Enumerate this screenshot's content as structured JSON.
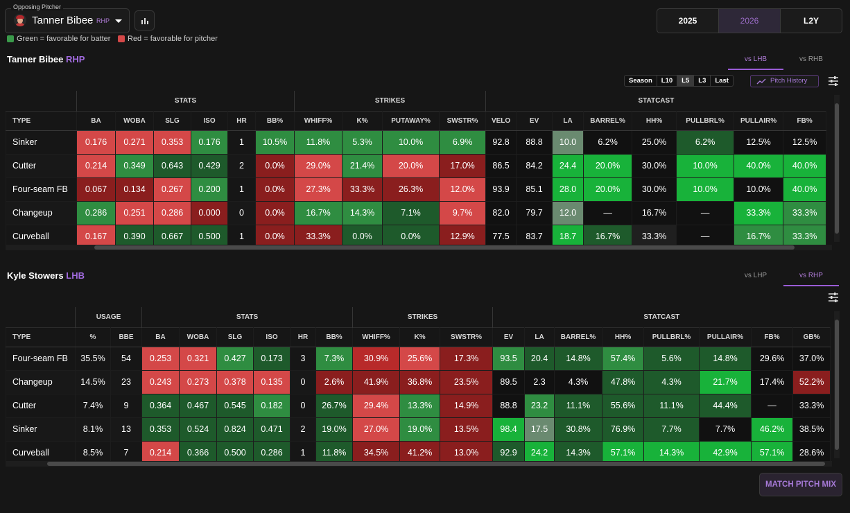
{
  "header": {
    "opposing_label": "Opposing Pitcher",
    "pitcher_name": "Tanner Bibee",
    "pitcher_hand": "RHP",
    "legend_green": "Green = favorable for batter",
    "legend_red": "Red = favorable for pitcher",
    "years": [
      "2025",
      "2026",
      "L2Y"
    ],
    "active_year": "2026"
  },
  "pitcher_section": {
    "name": "Tanner Bibee",
    "hand": "RHP",
    "tabs": [
      "vs LHB",
      "vs RHB"
    ],
    "active_tab": "vs LHB",
    "windows": [
      "Season",
      "L10",
      "L5",
      "L3",
      "Last"
    ],
    "active_window": "L5",
    "pitch_history_label": "Pitch History",
    "groups": [
      "STATS",
      "STRIKES",
      "STATCAST"
    ],
    "headers": [
      "TYPE",
      "BA",
      "WOBA",
      "SLG",
      "ISO",
      "HR",
      "BB%",
      "WHIFF%",
      "K%",
      "PUTAWAY%",
      "SWSTR%",
      "VELO",
      "EV",
      "LA",
      "BARREL%",
      "HH%",
      "PULLBRL%",
      "PULLAIR%",
      "FB%"
    ],
    "rows": [
      [
        "Sinker",
        "0.176",
        "0.271",
        "0.353",
        "0.176",
        "1",
        "10.5%",
        "11.8%",
        "5.3%",
        "10.0%",
        "6.9%",
        "92.8",
        "88.8",
        "10.0",
        "6.2%",
        "25.0%",
        "6.2%",
        "12.5%",
        "12.5%"
      ],
      [
        "Cutter",
        "0.214",
        "0.349",
        "0.643",
        "0.429",
        "2",
        "0.0%",
        "29.0%",
        "21.4%",
        "20.0%",
        "17.0%",
        "86.5",
        "84.2",
        "24.4",
        "20.0%",
        "30.0%",
        "10.0%",
        "40.0%",
        "40.0%"
      ],
      [
        "Four-seam FB",
        "0.067",
        "0.134",
        "0.267",
        "0.200",
        "1",
        "0.0%",
        "27.3%",
        "33.3%",
        "26.3%",
        "12.0%",
        "93.9",
        "85.1",
        "28.0",
        "20.0%",
        "30.0%",
        "10.0%",
        "10.0%",
        "40.0%"
      ],
      [
        "Changeup",
        "0.286",
        "0.251",
        "0.286",
        "0.000",
        "0",
        "0.0%",
        "16.7%",
        "14.3%",
        "7.1%",
        "9.7%",
        "82.0",
        "79.7",
        "12.0",
        "—",
        "16.7%",
        "—",
        "33.3%",
        "33.3%"
      ],
      [
        "Curveball",
        "0.167",
        "0.390",
        "0.667",
        "0.500",
        "1",
        "0.0%",
        "33.3%",
        "0.0%",
        "0.0%",
        "12.9%",
        "77.5",
        "83.7",
        "18.7",
        "16.7%",
        "33.3%",
        "—",
        "16.7%",
        "33.3%"
      ]
    ],
    "colors": [
      [
        "",
        "rs",
        "rs",
        "rs",
        "gm",
        "",
        "gm",
        "gm",
        "gm",
        "gm",
        "gm",
        "n",
        "n",
        "gg",
        "n",
        "n",
        "gd",
        "n",
        "n"
      ],
      [
        "",
        "rs",
        "gm",
        "gd",
        "gd",
        "",
        "rd",
        "rs",
        "gm",
        "rs",
        "rd",
        "n",
        "n",
        "gs",
        "gs",
        "n",
        "gs",
        "gs",
        "gs"
      ],
      [
        "",
        "rd",
        "rd",
        "rs",
        "gm",
        "",
        "rd",
        "rs",
        "rd",
        "rd",
        "rs",
        "n",
        "n",
        "gs",
        "gs",
        "n",
        "gs",
        "n",
        "gs"
      ],
      [
        "",
        "gm",
        "rs",
        "rs",
        "rd",
        "",
        "rd",
        "gm",
        "gm",
        "gd",
        "rs",
        "n",
        "n",
        "gg",
        "n",
        "n",
        "n",
        "gs",
        "gm"
      ],
      [
        "",
        "rs",
        "gd",
        "gd",
        "gd",
        "",
        "rd",
        "rd",
        "gd",
        "gd",
        "rd",
        "n",
        "n",
        "gs",
        "gd",
        "n2",
        "n",
        "gm",
        "gm"
      ]
    ]
  },
  "batter_section": {
    "name": "Kyle Stowers",
    "hand": "LHB",
    "tabs": [
      "vs LHP",
      "vs RHP"
    ],
    "active_tab": "vs RHP",
    "groups": [
      "USAGE",
      "STATS",
      "STRIKES",
      "STATCAST"
    ],
    "headers": [
      "TYPE",
      "%",
      "BBE",
      "BA",
      "WOBA",
      "SLG",
      "ISO",
      "HR",
      "BB%",
      "WHIFF%",
      "K%",
      "SWSTR%",
      "EV",
      "LA",
      "BARREL%",
      "HH%",
      "PULLBRL%",
      "PULLAIR%",
      "FB%",
      "GB%"
    ],
    "rows": [
      [
        "Four-seam FB",
        "35.5%",
        "54",
        "0.253",
        "0.321",
        "0.427",
        "0.173",
        "3",
        "7.3%",
        "30.9%",
        "25.6%",
        "17.3%",
        "93.5",
        "20.4",
        "14.8%",
        "57.4%",
        "5.6%",
        "14.8%",
        "29.6%",
        "37.0%"
      ],
      [
        "Changeup",
        "14.5%",
        "23",
        "0.243",
        "0.273",
        "0.378",
        "0.135",
        "0",
        "2.6%",
        "41.9%",
        "36.8%",
        "23.5%",
        "89.5",
        "2.3",
        "4.3%",
        "47.8%",
        "4.3%",
        "21.7%",
        "17.4%",
        "52.2%"
      ],
      [
        "Cutter",
        "7.4%",
        "9",
        "0.364",
        "0.467",
        "0.545",
        "0.182",
        "0",
        "26.7%",
        "29.4%",
        "13.3%",
        "14.9%",
        "88.8",
        "23.2",
        "11.1%",
        "55.6%",
        "11.1%",
        "44.4%",
        "—",
        "33.3%"
      ],
      [
        "Sinker",
        "8.1%",
        "13",
        "0.353",
        "0.524",
        "0.824",
        "0.471",
        "2",
        "19.0%",
        "27.0%",
        "19.0%",
        "13.5%",
        "98.4",
        "17.5",
        "30.8%",
        "76.9%",
        "7.7%",
        "7.7%",
        "46.2%",
        "38.5%"
      ],
      [
        "Curveball",
        "8.5%",
        "7",
        "0.214",
        "0.366",
        "0.500",
        "0.286",
        "1",
        "11.8%",
        "34.5%",
        "41.2%",
        "13.0%",
        "92.9",
        "24.2",
        "14.3%",
        "57.1%",
        "14.3%",
        "42.9%",
        "57.1%",
        "28.6%"
      ]
    ],
    "colors": [
      [
        "",
        "",
        "",
        "rs",
        "rs",
        "gm",
        "gd",
        "",
        "gm",
        "rm",
        "rs",
        "rd",
        "gm",
        "gd",
        "gd",
        "gm",
        "gd",
        "gd",
        "n",
        "n"
      ],
      [
        "",
        "",
        "",
        "rs",
        "rs",
        "rs",
        "rs",
        "",
        "rd",
        "rd",
        "rd",
        "rd",
        "n",
        "n",
        "n",
        "gd",
        "gd",
        "gs",
        "n",
        "rd"
      ],
      [
        "",
        "",
        "",
        "gd",
        "gd",
        "gd",
        "gm",
        "",
        "gd",
        "rs",
        "gm",
        "rd",
        "n",
        "gm",
        "gd",
        "gd",
        "gd",
        "gd",
        "n",
        "n"
      ],
      [
        "",
        "",
        "",
        "gd",
        "gd",
        "gd",
        "gd",
        "",
        "gd",
        "rs",
        "gm",
        "rd",
        "gs",
        "gg",
        "gd",
        "gd",
        "gd",
        "n",
        "gs",
        "n"
      ],
      [
        "",
        "",
        "",
        "rs",
        "gd",
        "gd",
        "gd",
        "",
        "gd",
        "rd",
        "rd",
        "rd",
        "gd",
        "gs",
        "gd",
        "gs",
        "gs",
        "gs",
        "gs",
        "n"
      ]
    ],
    "match_button": "MATCH PITCH MIX"
  }
}
